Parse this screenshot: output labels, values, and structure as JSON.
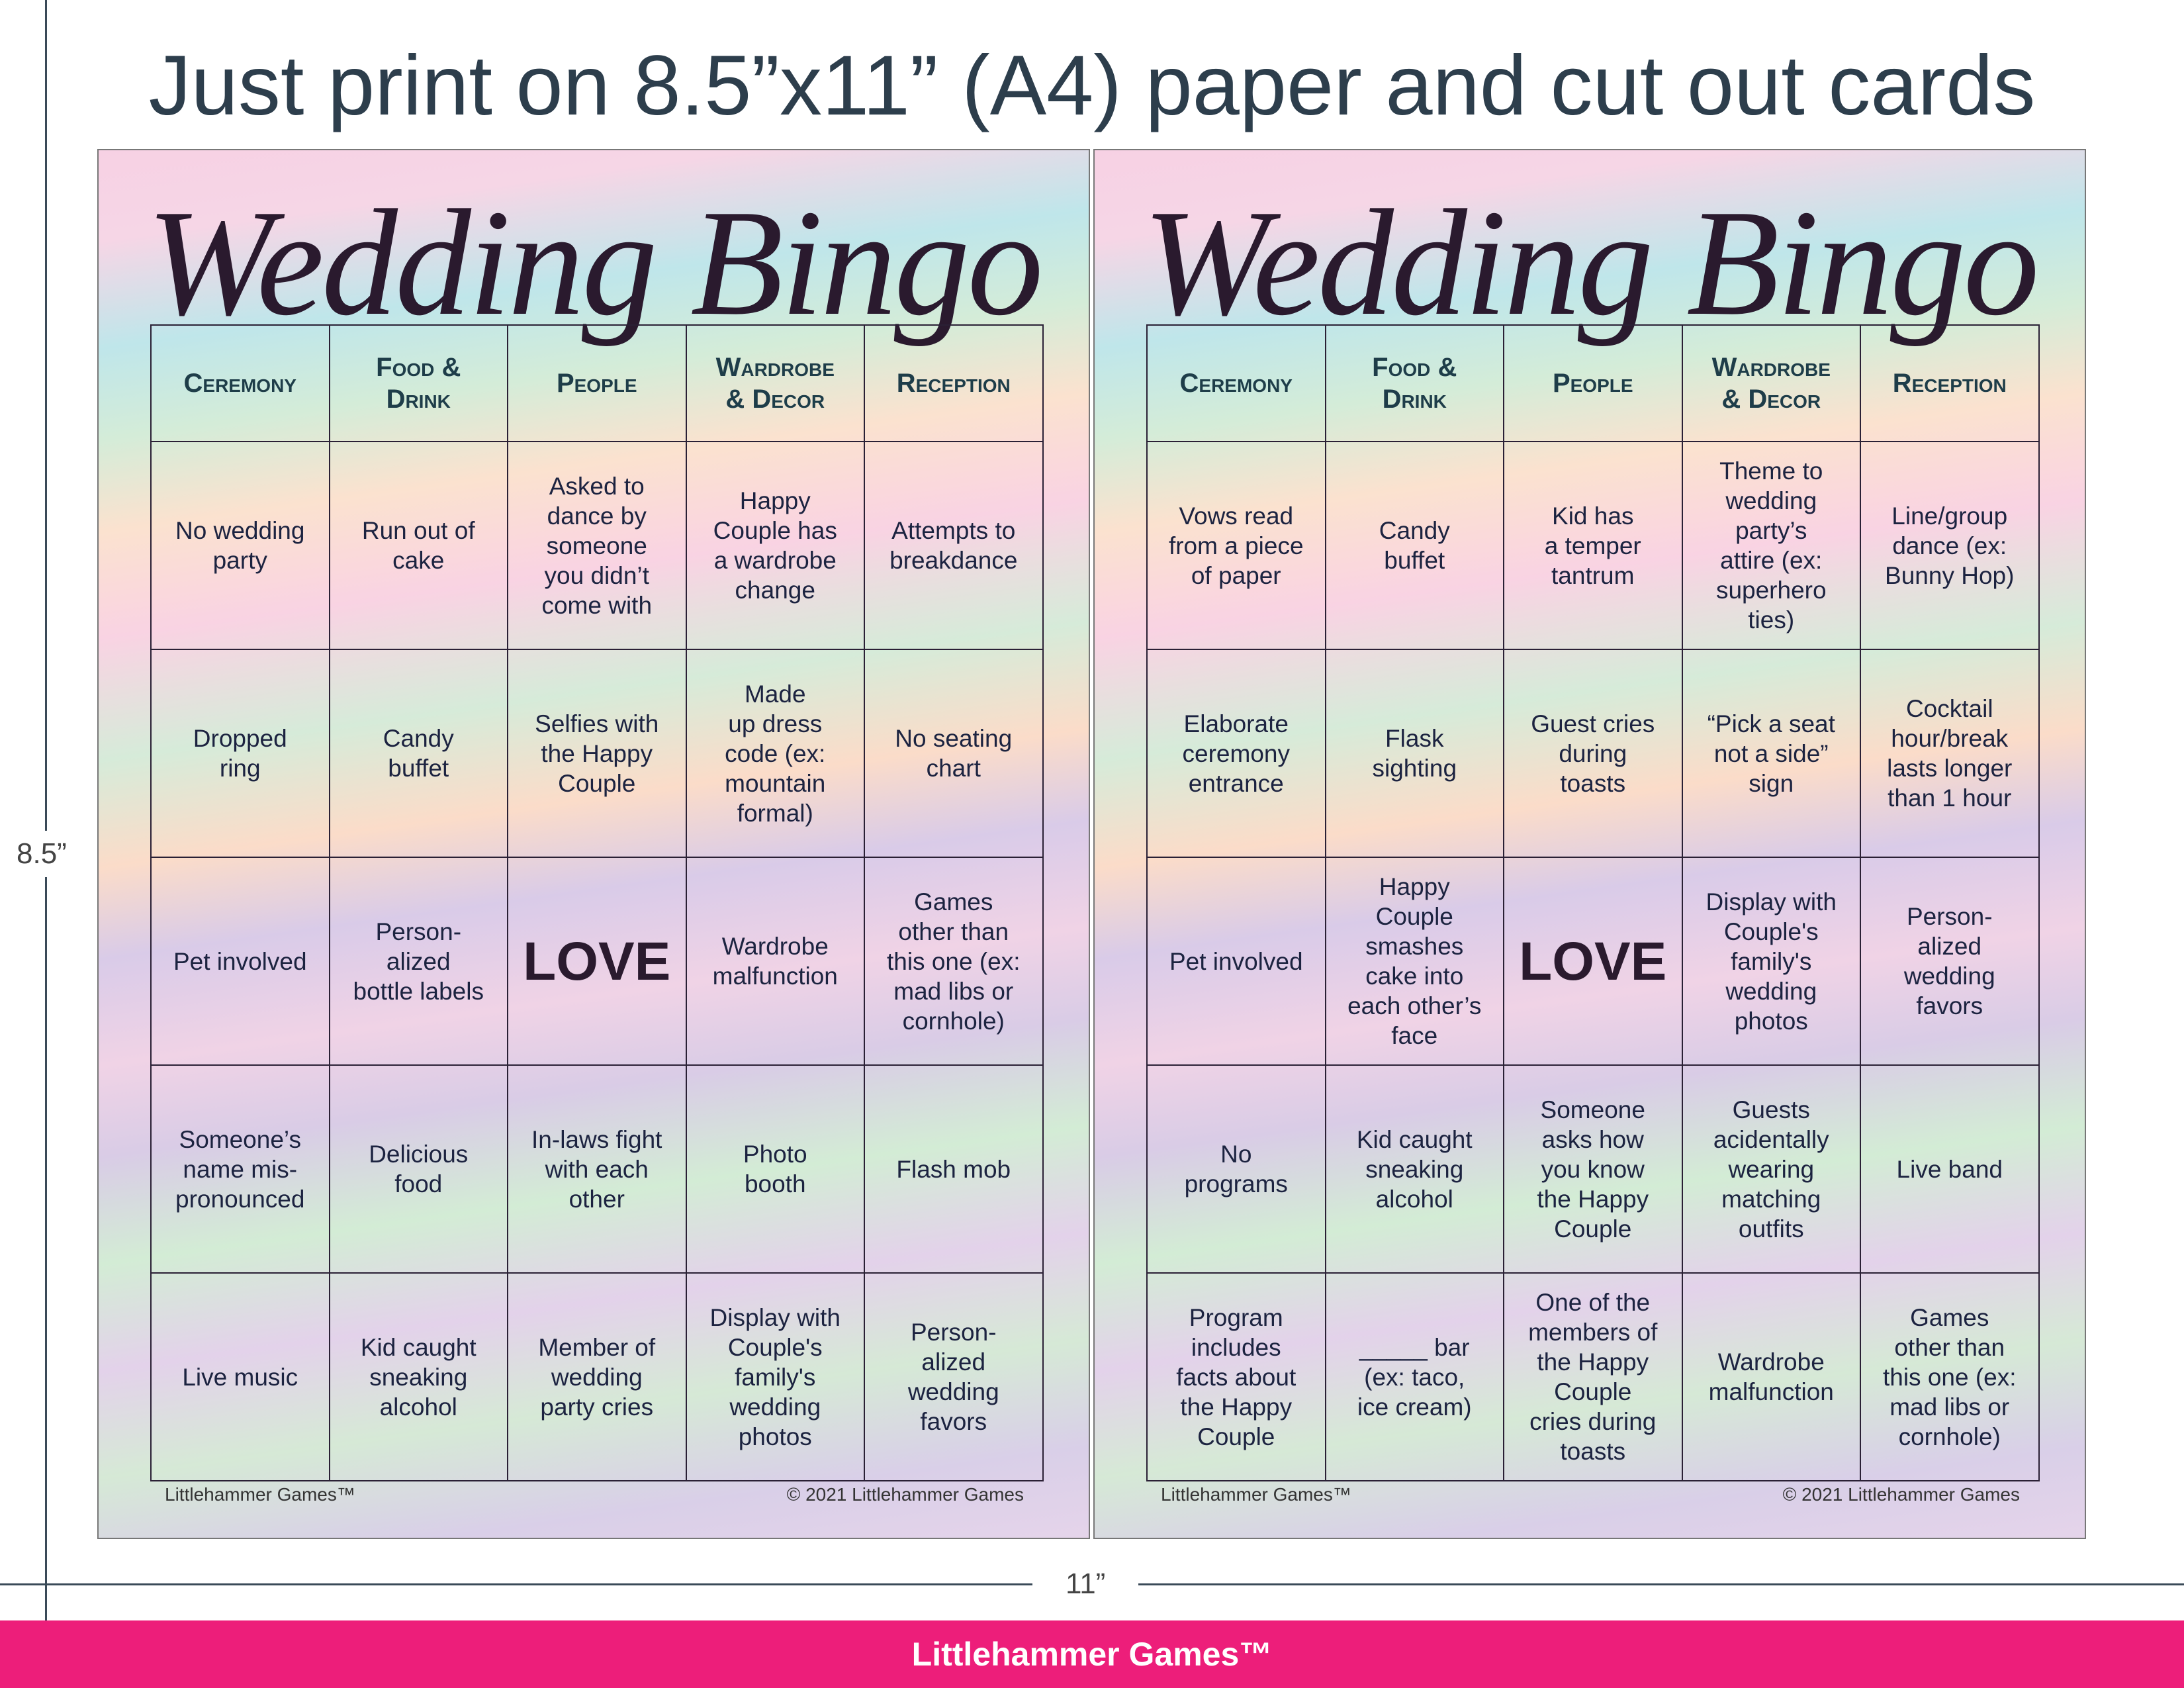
{
  "header": {
    "title": "Just print on 8.5”x11” (A4) paper and  cut out cards"
  },
  "dimensions": {
    "height": "8.5”",
    "width": "11”"
  },
  "cards": [
    {
      "title": "Wedding Bingo",
      "headers": [
        "Ceremony",
        "Food &\nDrink",
        "People",
        "Wardrobe\n& Decor",
        "Reception"
      ],
      "grid": [
        [
          "No wedding\nparty",
          "Run out of\ncake",
          "Asked to\ndance by\nsomeone\nyou didn’t\ncome with",
          "Happy\nCouple has\na wardrobe\nchange",
          "Attempts to\nbreakdance"
        ],
        [
          "Dropped\nring",
          "Candy\nbuffet",
          "Selfies with\nthe Happy\nCouple",
          "Made\nup dress\ncode (ex:\nmountain\nformal)",
          "No seating\nchart"
        ],
        [
          "Pet involved",
          "Person-\nalized\nbottle labels",
          "LOVE",
          "Wardrobe\nmalfunction",
          "Games\nother than\nthis one (ex:\nmad libs or\ncornhole)"
        ],
        [
          "Someone’s\nname mis-\npronounced",
          "Delicious\nfood",
          "In-laws fight\nwith each\nother",
          "Photo\nbooth",
          "Flash mob"
        ],
        [
          "Live music",
          "Kid caught\nsneaking\nalcohol",
          "Member of\nwedding\nparty cries",
          "Display with\nCouple's\nfamily's\nwedding\nphotos",
          "Person-\nalized\nwedding\nfavors"
        ]
      ],
      "footer_left": "Littlehammer Games™",
      "footer_right": "© 2021 Littlehammer Games"
    },
    {
      "title": "Wedding Bingo",
      "headers": [
        "Ceremony",
        "Food &\nDrink",
        "People",
        "Wardrobe\n& Decor",
        "Reception"
      ],
      "grid": [
        [
          "Vows read\nfrom a piece\nof paper",
          "Candy\nbuffet",
          "Kid has\na temper\ntantrum",
          "Theme to\nwedding\nparty’s\nattire (ex:\nsuperhero\nties)",
          "Line/group\ndance (ex:\nBunny Hop)"
        ],
        [
          "Elaborate\nceremony\nentrance",
          "Flask\nsighting",
          "Guest cries\nduring\ntoasts",
          "“Pick a seat\nnot a side”\nsign",
          "Cocktail\nhour/break\nlasts longer\nthan 1 hour"
        ],
        [
          "Pet involved",
          "Happy\nCouple\nsmashes\ncake into\neach other’s\nface",
          "LOVE",
          "Display with\nCouple's\nfamily's\nwedding\nphotos",
          "Person-\nalized\nwedding\nfavors"
        ],
        [
          "No\nprograms",
          "Kid caught\nsneaking\nalcohol",
          "Someone\nasks how\nyou know\nthe Happy\nCouple",
          "Guests\nacidentally\nwearing\nmatching\noutfits",
          "Live band"
        ],
        [
          "Program\nincludes\nfacts about\nthe Happy\nCouple",
          "_____ bar\n(ex: taco,\nice cream)",
          "One of the\nmembers of\nthe Happy\nCouple\ncries during\ntoasts",
          "Wardrobe\nmalfunction",
          "Games\nother than\nthis one (ex:\nmad libs or\ncornhole)"
        ]
      ],
      "footer_left": "Littlehammer Games™",
      "footer_right": "© 2021 Littlehammer Games"
    }
  ],
  "brand_bar": {
    "text": "Littlehammer Games™"
  }
}
